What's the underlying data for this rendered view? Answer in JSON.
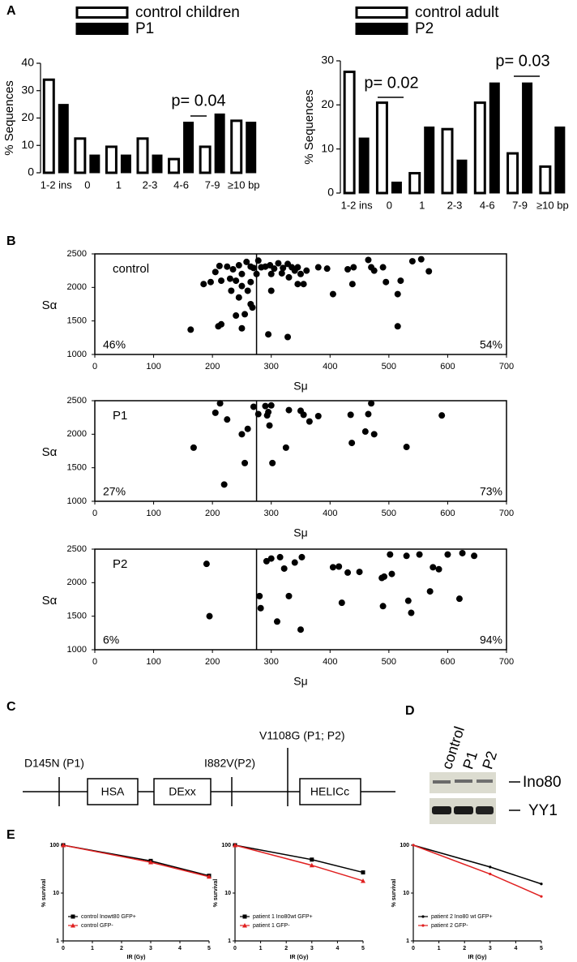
{
  "panel_labels": [
    "A",
    "B",
    "C",
    "D",
    "E"
  ],
  "chart_data": [
    {
      "type": "bar",
      "ylabel": "% Sequences",
      "legend": "top",
      "categories": [
        "1-2 ins",
        "0",
        "1",
        "2-3",
        "4-6",
        "7-9",
        "≥10 bp"
      ],
      "series": [
        {
          "name": "control children",
          "color": "#ffffff",
          "values": [
            34,
            12.5,
            9.5,
            12.5,
            5,
            9.5,
            19
          ]
        },
        {
          "name": "P1",
          "color": "#000000",
          "values": [
            25,
            6.5,
            6.5,
            6.5,
            18.5,
            21.5,
            18.5
          ]
        }
      ],
      "ylim": [
        0,
        40
      ],
      "yticks": [
        0,
        10,
        20,
        30,
        40
      ],
      "annotations": [
        "p= 0.04"
      ]
    },
    {
      "type": "bar",
      "ylabel": "% Sequences",
      "legend": "top",
      "categories": [
        "1-2 ins",
        "0",
        "1",
        "2-3",
        "4-6",
        "7-9",
        "≥10 bp"
      ],
      "series": [
        {
          "name": "control adult",
          "color": "#ffffff",
          "values": [
            27.5,
            20.5,
            4.5,
            14.5,
            20.5,
            9,
            6
          ]
        },
        {
          "name": "P2",
          "color": "#000000",
          "values": [
            12.5,
            2.5,
            15,
            7.5,
            25,
            25,
            15
          ]
        }
      ],
      "ylim": [
        0,
        30
      ],
      "yticks": [
        0,
        10,
        20,
        30
      ],
      "annotations": [
        "p= 0.02",
        "p= 0.03"
      ]
    },
    {
      "type": "scatter",
      "label": "control",
      "xlabel": "Sμ",
      "ylabel": "Sα",
      "color": "#000000",
      "left_share": "46%",
      "right_share": "54%",
      "threshold": 275,
      "x": [
        163,
        205,
        212,
        215,
        225,
        235,
        245,
        250,
        258,
        265,
        270,
        278,
        283,
        290,
        298,
        305,
        312,
        320,
        328,
        335,
        340,
        345,
        350,
        355,
        360,
        230,
        240,
        232,
        245,
        260,
        265,
        268,
        255,
        240,
        215,
        210,
        250,
        295,
        328,
        197,
        380,
        395,
        405,
        430,
        440,
        438,
        465,
        470,
        475,
        490,
        495,
        515,
        520,
        515,
        540,
        555,
        568,
        275,
        300,
        318,
        345,
        250,
        265,
        185,
        300,
        330
      ],
      "y": [
        1370,
        2230,
        2320,
        2100,
        2310,
        2270,
        2330,
        2200,
        2380,
        2310,
        2290,
        2400,
        2300,
        2310,
        2330,
        2280,
        2360,
        2290,
        2350,
        2300,
        2250,
        2300,
        2200,
        2050,
        2250,
        2130,
        2100,
        1950,
        1850,
        1950,
        1750,
        1700,
        1600,
        1580,
        1450,
        1420,
        1390,
        1300,
        1260,
        2080,
        2300,
        2280,
        1900,
        2270,
        2300,
        2050,
        2410,
        2300,
        2250,
        2300,
        2080,
        1900,
        2100,
        1420,
        2390,
        2420,
        2240,
        2200,
        2200,
        2210,
        2050,
        2020,
        2080,
        2050,
        1950,
        2150
      ],
      "xlim": [
        0,
        700
      ],
      "xticks": [
        0,
        100,
        200,
        300,
        400,
        500,
        600,
        700
      ],
      "ylim": [
        1000,
        2500
      ],
      "yticks": [
        1000,
        1500,
        2000,
        2500
      ]
    },
    {
      "type": "scatter",
      "label": "P1",
      "xlabel": "Sμ",
      "ylabel": "Sα",
      "color": "#000000",
      "left_share": "27%",
      "right_share": "73%",
      "threshold": 275,
      "x": [
        168,
        205,
        213,
        220,
        225,
        250,
        255,
        260,
        270,
        290,
        293,
        297,
        300,
        302,
        325,
        330,
        350,
        355,
        365,
        380,
        435,
        437,
        460,
        465,
        470,
        475,
        530,
        590,
        278,
        295
      ],
      "y": [
        1800,
        2320,
        2460,
        1250,
        2220,
        2000,
        1570,
        2080,
        2410,
        2420,
        2280,
        2130,
        2430,
        1570,
        1800,
        2360,
        2350,
        2290,
        2190,
        2270,
        2290,
        1870,
        2040,
        2300,
        2460,
        2000,
        1810,
        2280,
        2300,
        2330
      ],
      "xlim": [
        0,
        700
      ],
      "xticks": [
        0,
        100,
        200,
        300,
        400,
        500,
        600,
        700
      ],
      "ylim": [
        1000,
        2500
      ],
      "yticks": [
        1000,
        1500,
        2000,
        2500
      ]
    },
    {
      "type": "scatter",
      "label": "P2",
      "xlabel": "Sμ",
      "ylabel": "Sα",
      "color": "#000000",
      "left_share": "6%",
      "right_share": "94%",
      "threshold": 275,
      "x": [
        190,
        195,
        280,
        282,
        292,
        300,
        310,
        315,
        322,
        330,
        340,
        350,
        352,
        405,
        415,
        420,
        430,
        450,
        488,
        490,
        492,
        502,
        505,
        530,
        533,
        538,
        552,
        570,
        575,
        585,
        600,
        620,
        625,
        645
      ],
      "y": [
        2280,
        1500,
        1800,
        1620,
        2320,
        2360,
        1420,
        2380,
        2210,
        1800,
        2300,
        1300,
        2380,
        2230,
        2240,
        1700,
        2150,
        2160,
        2070,
        1650,
        2090,
        2420,
        2130,
        2400,
        1730,
        1550,
        2420,
        1870,
        2230,
        2200,
        2420,
        1760,
        2440,
        2400
      ],
      "xlim": [
        0,
        700
      ],
      "xticks": [
        0,
        100,
        200,
        300,
        400,
        500,
        600,
        700
      ],
      "ylim": [
        1000,
        2500
      ],
      "yticks": [
        1000,
        1500,
        2000,
        2500
      ]
    },
    {
      "type": "line",
      "xlabel": "IR (Gy)",
      "ylabel": "% survival",
      "log_y": true,
      "legend": "lower left",
      "x": [
        0,
        3,
        5
      ],
      "series": [
        {
          "name": "control Inowt80 GFP+",
          "color": "#000000",
          "marker": "square",
          "values": [
            100,
            47,
            23
          ]
        },
        {
          "name": "control GFP-",
          "color": "#e02020",
          "marker": "triangle",
          "values": [
            100,
            44,
            22
          ]
        }
      ],
      "xlim": [
        0,
        5
      ],
      "xticks": [
        0,
        1,
        2,
        3,
        4,
        5
      ],
      "ylim": [
        1,
        100
      ],
      "yticks": [
        1,
        10,
        100
      ]
    },
    {
      "type": "line",
      "xlabel": "IR (Gy)",
      "ylabel": "% survival",
      "log_y": true,
      "legend": "lower left",
      "x": [
        0,
        3,
        5
      ],
      "series": [
        {
          "name": "patient 1 Ino80wt GFP+",
          "color": "#000000",
          "marker": "square",
          "values": [
            100,
            50,
            27
          ]
        },
        {
          "name": "patient 1 GFP-",
          "color": "#e02020",
          "marker": "triangle",
          "values": [
            100,
            38,
            18
          ]
        }
      ],
      "xlim": [
        0,
        5
      ],
      "xticks": [
        0,
        1,
        2,
        3,
        4,
        5
      ],
      "ylim": [
        1,
        100
      ],
      "yticks": [
        1,
        10,
        100
      ]
    },
    {
      "type": "line",
      "xlabel": "IR (Gy)",
      "ylabel": "% survival",
      "log_y": true,
      "legend": "lower left",
      "x": [
        0,
        3,
        5
      ],
      "series": [
        {
          "name": "patient 2 Ino80 wt GFP+",
          "color": "#000000",
          "marker": "dot",
          "values": [
            100,
            35,
            15.5
          ]
        },
        {
          "name": "patient 2 GFP-",
          "color": "#e02020",
          "marker": "dot",
          "values": [
            100,
            25,
            8.5
          ]
        }
      ],
      "xlim": [
        0,
        5
      ],
      "xticks": [
        0,
        1,
        2,
        3,
        4,
        5
      ],
      "ylim": [
        1,
        100
      ],
      "yticks": [
        1,
        10,
        100
      ]
    }
  ],
  "diagram": {
    "mutations": [
      "D145N (P1)",
      "I882V(P2)",
      "V1108G (P1; P2)"
    ],
    "domains": [
      "HSA",
      "DExx",
      "HELICc"
    ]
  },
  "blot": {
    "lanes": [
      "control",
      "P1",
      "P2"
    ],
    "proteins": [
      "Ino80",
      "YY1"
    ]
  }
}
